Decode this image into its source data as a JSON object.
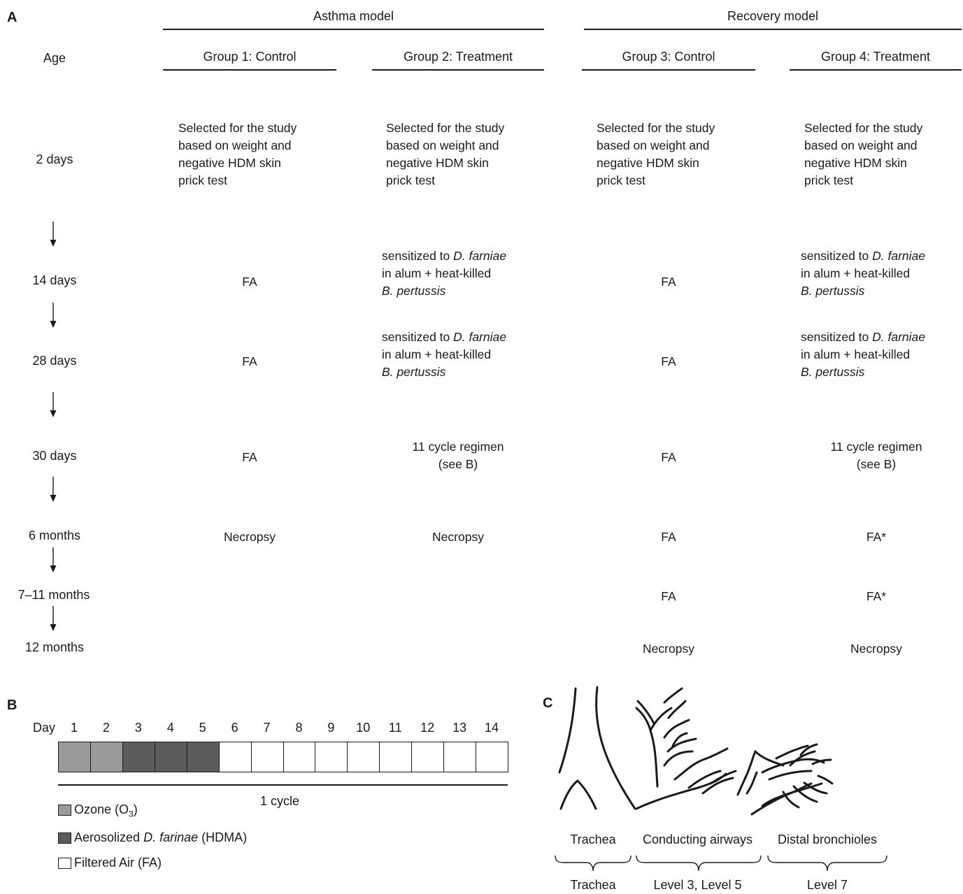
{
  "panels": {
    "a": "A",
    "b": "B",
    "c": "C"
  },
  "panel_a": {
    "age_header": "Age",
    "model_headers": [
      "Asthma model",
      "Recovery model"
    ],
    "groups": [
      "Group 1: Control",
      "Group 2: Treatment",
      "Group 3: Control",
      "Group 4: Treatment"
    ],
    "ages": [
      "2 days",
      "14 days",
      "28 days",
      "30 days",
      "6 months",
      "7–11 months",
      "12 months"
    ],
    "selected_text": [
      "Selected for the study",
      "based on weight and",
      "negative HDM skin",
      "prick test"
    ],
    "fa": "FA",
    "fa_star": "FA*",
    "necropsy": "Necropsy",
    "sensitized": {
      "line1_prefix": "sensitized to ",
      "line1_species": "D. farniae",
      "line2": "in alum + heat-killed",
      "line3": "B. pertussis"
    },
    "regimen": [
      "11 cycle regimen",
      "(see B)"
    ]
  },
  "panel_b": {
    "day_label": "Day",
    "days": [
      "1",
      "2",
      "3",
      "4",
      "5",
      "6",
      "7",
      "8",
      "9",
      "10",
      "11",
      "12",
      "13",
      "14"
    ],
    "day_exposure": [
      "ozone",
      "ozone",
      "hdma",
      "hdma",
      "hdma",
      "fa",
      "fa",
      "fa",
      "fa",
      "fa",
      "fa",
      "fa",
      "fa",
      "fa"
    ],
    "colors": {
      "ozone": "#9a9a9a",
      "hdma": "#5c5c5c",
      "fa": "#ffffff"
    },
    "cycle_label": "1 cycle",
    "legend": {
      "ozone_prefix": "Ozone (O",
      "ozone_sub": "3",
      "ozone_suffix": ")",
      "hdma_species": "D. farinae",
      "hdma_prefix": "Aerosolized ",
      "hdma_suffix": " (HDMA)",
      "fa": "Filtered Air (FA)"
    }
  },
  "panel_c": {
    "regions": [
      "Trachea",
      "Conducting airways",
      "Distal bronchioles"
    ],
    "levels": [
      "Trachea",
      "Level 3, Level 5",
      "Level 7"
    ]
  }
}
